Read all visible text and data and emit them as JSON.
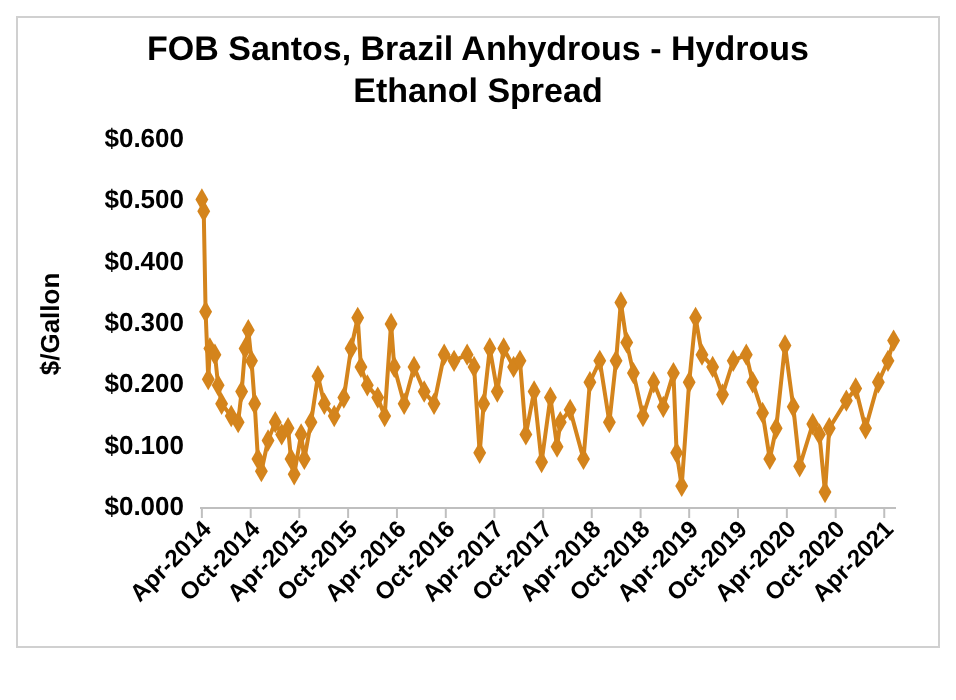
{
  "chart_data": {
    "type": "line",
    "title": "FOB Santos, Brazil Anhydrous - Hydrous Ethanol Spread",
    "ylabel": "$/Gallon",
    "marker": "diamond",
    "line_style": "solid",
    "xlim": [
      "2014-03-25",
      "2021-05-15"
    ],
    "xticks": [
      {
        "value": "2014-04-01",
        "label": "Apr-2014"
      },
      {
        "value": "2014-10-01",
        "label": "Oct-2014"
      },
      {
        "value": "2015-04-01",
        "label": "Apr-2015"
      },
      {
        "value": "2015-10-01",
        "label": "Oct-2015"
      },
      {
        "value": "2016-04-01",
        "label": "Apr-2016"
      },
      {
        "value": "2016-10-01",
        "label": "Oct-2016"
      },
      {
        "value": "2017-04-01",
        "label": "Apr-2017"
      },
      {
        "value": "2017-10-01",
        "label": "Oct-2017"
      },
      {
        "value": "2018-04-01",
        "label": "Apr-2018"
      },
      {
        "value": "2018-10-01",
        "label": "Oct-2018"
      },
      {
        "value": "2019-04-01",
        "label": "Apr-2019"
      },
      {
        "value": "2019-10-01",
        "label": "Oct-2019"
      },
      {
        "value": "2020-04-01",
        "label": "Apr-2020"
      },
      {
        "value": "2020-10-01",
        "label": "Oct-2020"
      },
      {
        "value": "2021-04-01",
        "label": "Apr-2021"
      }
    ],
    "ylim": [
      0,
      0.6
    ],
    "yticks": [
      {
        "value": 0,
        "label": "$0.000"
      },
      {
        "value": 0.1,
        "label": "$0.100"
      },
      {
        "value": 0.2,
        "label": "$0.200"
      },
      {
        "value": 0.3,
        "label": "$0.300"
      },
      {
        "value": 0.4,
        "label": "$0.400"
      },
      {
        "value": 0.5,
        "label": "$0.500"
      },
      {
        "value": 0.6,
        "label": "$0.600"
      }
    ],
    "series": [
      {
        "color": "#d4841c",
        "x": [
          "2014-04-01",
          "2014-04-08",
          "2014-04-15",
          "2014-04-25",
          "2014-05-01",
          "2014-05-20",
          "2014-06-01",
          "2014-06-14",
          "2014-07-20",
          "2014-08-15",
          "2014-08-28",
          "2014-09-10",
          "2014-09-22",
          "2014-10-04",
          "2014-10-16",
          "2014-10-28",
          "2014-11-10",
          "2014-12-05",
          "2015-01-01",
          "2015-01-25",
          "2015-02-18",
          "2015-03-01",
          "2015-03-13",
          "2015-04-08",
          "2015-04-20",
          "2015-05-15",
          "2015-06-10",
          "2015-07-04",
          "2015-08-10",
          "2015-09-15",
          "2015-10-12",
          "2015-11-06",
          "2015-11-18",
          "2015-12-12",
          "2016-01-20",
          "2016-02-15",
          "2016-03-10",
          "2016-03-22",
          "2016-04-28",
          "2016-06-04",
          "2016-07-12",
          "2016-08-18",
          "2016-09-25",
          "2016-11-01",
          "2016-12-20",
          "2017-01-15",
          "2017-02-05",
          "2017-02-20",
          "2017-03-15",
          "2017-04-12",
          "2017-05-06",
          "2017-06-12",
          "2017-07-06",
          "2017-07-28",
          "2017-08-28",
          "2017-09-25",
          "2017-10-28",
          "2017-11-22",
          "2017-12-04",
          "2018-01-10",
          "2018-03-01",
          "2018-03-25",
          "2018-05-01",
          "2018-06-06",
          "2018-07-01",
          "2018-07-19",
          "2018-08-10",
          "2018-09-04",
          "2018-10-10",
          "2018-11-19",
          "2018-12-25",
          "2019-02-01",
          "2019-02-13",
          "2019-03-04",
          "2019-04-01",
          "2019-04-25",
          "2019-05-19",
          "2019-06-28",
          "2019-08-04",
          "2019-09-13",
          "2019-11-01",
          "2019-11-25",
          "2020-01-01",
          "2020-01-28",
          "2020-02-21",
          "2020-03-25",
          "2020-04-25",
          "2020-05-19",
          "2020-07-07",
          "2020-08-01",
          "2020-08-22",
          "2020-09-07",
          "2020-11-10",
          "2020-12-15",
          "2021-01-21",
          "2021-03-10",
          "2021-04-15",
          "2021-05-06"
        ],
        "values": [
          0.503,
          0.484,
          0.32,
          0.21,
          0.26,
          0.25,
          0.2,
          0.17,
          0.15,
          0.14,
          0.19,
          0.26,
          0.29,
          0.24,
          0.17,
          0.08,
          0.06,
          0.11,
          0.14,
          0.12,
          0.13,
          0.08,
          0.055,
          0.12,
          0.08,
          0.14,
          0.215,
          0.17,
          0.15,
          0.18,
          0.26,
          0.31,
          0.23,
          0.2,
          0.18,
          0.15,
          0.3,
          0.23,
          0.17,
          0.23,
          0.19,
          0.17,
          0.25,
          0.24,
          0.25,
          0.23,
          0.09,
          0.17,
          0.26,
          0.19,
          0.26,
          0.23,
          0.24,
          0.12,
          0.19,
          0.075,
          0.18,
          0.1,
          0.14,
          0.16,
          0.08,
          0.205,
          0.24,
          0.14,
          0.24,
          0.335,
          0.27,
          0.22,
          0.15,
          0.205,
          0.165,
          0.22,
          0.09,
          0.036,
          0.205,
          0.31,
          0.25,
          0.23,
          0.185,
          0.24,
          0.25,
          0.205,
          0.155,
          0.08,
          0.13,
          0.265,
          0.165,
          0.068,
          0.137,
          0.12,
          0.026,
          0.13,
          0.175,
          0.195,
          0.13,
          0.205,
          0.24,
          0.273
        ]
      }
    ]
  }
}
